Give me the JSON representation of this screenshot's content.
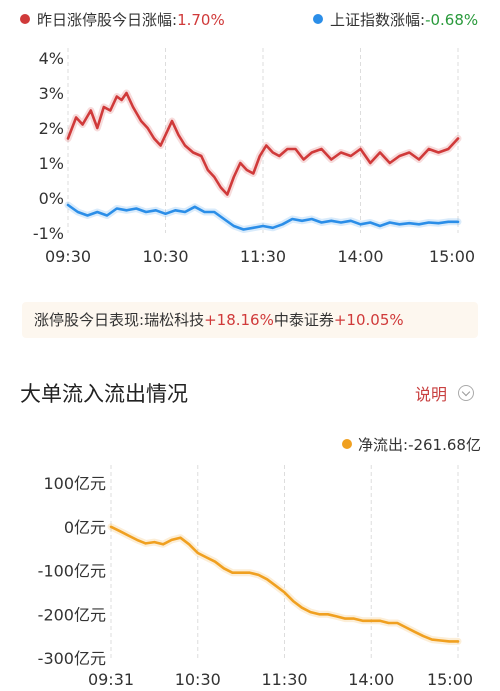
{
  "legend": {
    "limit_up": {
      "label": "昨日涨停股今日涨幅:",
      "value": "1.70%",
      "color": "#d03a3a"
    },
    "sh_index": {
      "label": "上证指数涨幅:",
      "value": "-0.68%",
      "color": "#2b8ee8"
    }
  },
  "limit_note": {
    "prefix": "涨停股今日表现:",
    "stocks": [
      {
        "name": "瑞松科技",
        "pct": "+18.16%"
      },
      {
        "name": "中泰证券",
        "pct": "+10.05%"
      }
    ]
  },
  "flow_section": {
    "title": "大单流入流出情况",
    "explain_label": "说明",
    "net_label": "净流出:",
    "net_value": "-261.68亿",
    "net_color": "#f0a020"
  },
  "chart_data": [
    {
      "type": "line",
      "x_ticks": [
        "09:30",
        "10:30",
        "11:30",
        "14:00",
        "15:00"
      ],
      "y_ticks": [
        "4%",
        "3%",
        "2%",
        "1%",
        "0%",
        "-1%"
      ],
      "ylim": [
        -1,
        4
      ],
      "xlim": [
        0,
        240
      ],
      "grid": "vertical dashed",
      "series": [
        {
          "name": "昨日涨停股今日涨幅",
          "color": "#d03a3a",
          "points": [
            [
              0,
              1.7
            ],
            [
              5,
              2.3
            ],
            [
              9,
              2.1
            ],
            [
              14,
              2.5
            ],
            [
              18,
              2.0
            ],
            [
              22,
              2.6
            ],
            [
              26,
              2.5
            ],
            [
              30,
              2.9
            ],
            [
              33,
              2.8
            ],
            [
              36,
              3.0
            ],
            [
              40,
              2.6
            ],
            [
              45,
              2.2
            ],
            [
              49,
              2.0
            ],
            [
              53,
              1.7
            ],
            [
              57,
              1.5
            ],
            [
              60,
              1.8
            ],
            [
              64,
              2.2
            ],
            [
              68,
              1.8
            ],
            [
              72,
              1.5
            ],
            [
              77,
              1.3
            ],
            [
              82,
              1.2
            ],
            [
              86,
              0.8
            ],
            [
              90,
              0.6
            ],
            [
              94,
              0.3
            ],
            [
              98,
              0.1
            ],
            [
              102,
              0.6
            ],
            [
              106,
              1.0
            ],
            [
              110,
              0.8
            ],
            [
              114,
              0.7
            ],
            [
              118,
              1.2
            ],
            [
              122,
              1.5
            ],
            [
              126,
              1.3
            ],
            [
              130,
              1.2
            ],
            [
              135,
              1.4
            ],
            [
              140,
              1.4
            ],
            [
              145,
              1.1
            ],
            [
              150,
              1.3
            ],
            [
              156,
              1.4
            ],
            [
              162,
              1.1
            ],
            [
              168,
              1.3
            ],
            [
              174,
              1.2
            ],
            [
              180,
              1.4
            ],
            [
              186,
              1.0
            ],
            [
              192,
              1.3
            ],
            [
              198,
              1.0
            ],
            [
              204,
              1.2
            ],
            [
              210,
              1.3
            ],
            [
              216,
              1.1
            ],
            [
              222,
              1.4
            ],
            [
              228,
              1.3
            ],
            [
              234,
              1.4
            ],
            [
              238,
              1.6
            ],
            [
              240,
              1.7
            ]
          ]
        },
        {
          "name": "上证指数涨幅",
          "color": "#2b8ee8",
          "points": [
            [
              0,
              -0.2
            ],
            [
              6,
              -0.4
            ],
            [
              12,
              -0.5
            ],
            [
              18,
              -0.4
            ],
            [
              24,
              -0.5
            ],
            [
              30,
              -0.3
            ],
            [
              36,
              -0.35
            ],
            [
              42,
              -0.3
            ],
            [
              48,
              -0.4
            ],
            [
              54,
              -0.35
            ],
            [
              60,
              -0.45
            ],
            [
              66,
              -0.35
            ],
            [
              72,
              -0.4
            ],
            [
              78,
              -0.25
            ],
            [
              84,
              -0.4
            ],
            [
              90,
              -0.4
            ],
            [
              96,
              -0.6
            ],
            [
              102,
              -0.8
            ],
            [
              108,
              -0.9
            ],
            [
              114,
              -0.85
            ],
            [
              120,
              -0.8
            ],
            [
              126,
              -0.85
            ],
            [
              132,
              -0.75
            ],
            [
              138,
              -0.6
            ],
            [
              144,
              -0.65
            ],
            [
              150,
              -0.6
            ],
            [
              156,
              -0.7
            ],
            [
              162,
              -0.65
            ],
            [
              168,
              -0.7
            ],
            [
              174,
              -0.65
            ],
            [
              180,
              -0.75
            ],
            [
              186,
              -0.7
            ],
            [
              192,
              -0.8
            ],
            [
              198,
              -0.7
            ],
            [
              204,
              -0.75
            ],
            [
              210,
              -0.72
            ],
            [
              216,
              -0.75
            ],
            [
              222,
              -0.7
            ],
            [
              228,
              -0.72
            ],
            [
              234,
              -0.68
            ],
            [
              240,
              -0.68
            ]
          ]
        }
      ]
    },
    {
      "type": "line",
      "x_ticks": [
        "09:31",
        "10:30",
        "11:30",
        "14:00",
        "15:00"
      ],
      "y_ticks": [
        "100亿元",
        "0亿元",
        "-100亿元",
        "-200亿元",
        "-300亿元"
      ],
      "ylim": [
        -300,
        100
      ],
      "xlim": [
        0,
        240
      ],
      "grid": "vertical dashed",
      "series": [
        {
          "name": "净流出",
          "color": "#f0a020",
          "points": [
            [
              0,
              0
            ],
            [
              6,
              -10
            ],
            [
              12,
              -20
            ],
            [
              18,
              -30
            ],
            [
              24,
              -38
            ],
            [
              30,
              -35
            ],
            [
              36,
              -40
            ],
            [
              42,
              -30
            ],
            [
              48,
              -25
            ],
            [
              54,
              -40
            ],
            [
              60,
              -60
            ],
            [
              66,
              -70
            ],
            [
              72,
              -80
            ],
            [
              78,
              -95
            ],
            [
              84,
              -105
            ],
            [
              90,
              -105
            ],
            [
              96,
              -105
            ],
            [
              102,
              -110
            ],
            [
              108,
              -120
            ],
            [
              114,
              -135
            ],
            [
              120,
              -150
            ],
            [
              126,
              -170
            ],
            [
              132,
              -185
            ],
            [
              138,
              -195
            ],
            [
              144,
              -200
            ],
            [
              150,
              -200
            ],
            [
              156,
              -205
            ],
            [
              162,
              -210
            ],
            [
              168,
              -210
            ],
            [
              174,
              -215
            ],
            [
              180,
              -215
            ],
            [
              186,
              -215
            ],
            [
              192,
              -220
            ],
            [
              198,
              -220
            ],
            [
              204,
              -230
            ],
            [
              210,
              -240
            ],
            [
              216,
              -250
            ],
            [
              222,
              -258
            ],
            [
              228,
              -260
            ],
            [
              234,
              -262
            ],
            [
              240,
              -262
            ]
          ]
        }
      ]
    }
  ]
}
